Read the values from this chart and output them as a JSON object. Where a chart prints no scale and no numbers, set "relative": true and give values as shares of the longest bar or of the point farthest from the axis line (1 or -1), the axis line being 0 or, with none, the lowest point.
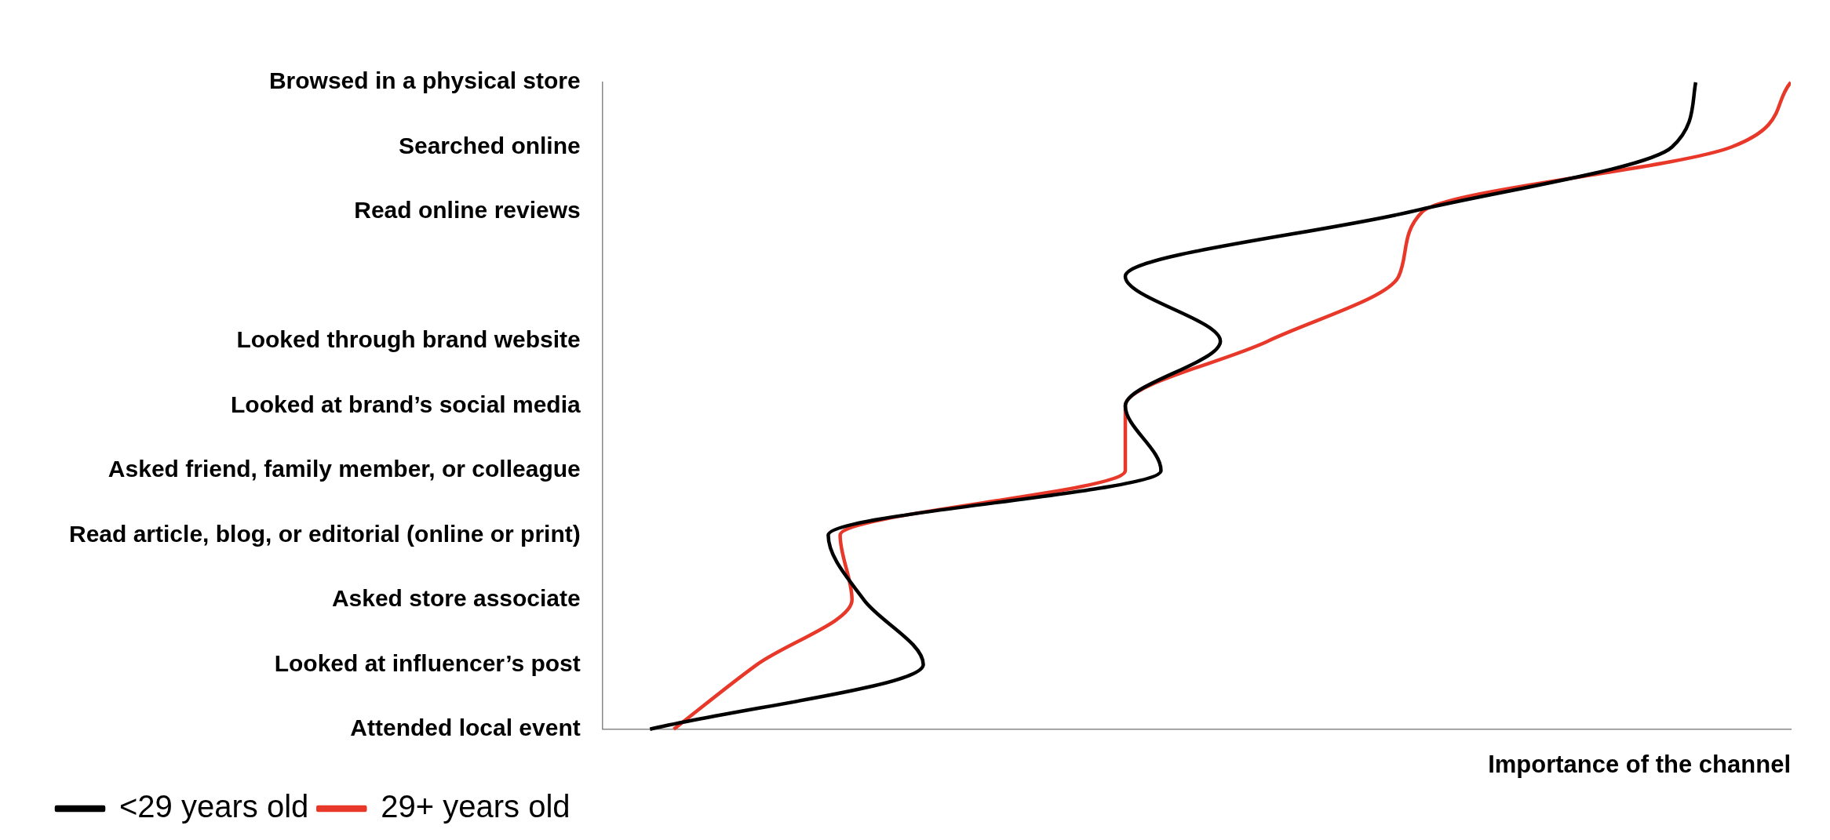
{
  "chart_data": {
    "type": "line",
    "relative": true,
    "orientation": "horizontal",
    "xlabel": "Importance of the channel",
    "categories": [
      "Browsed in a physical store",
      "Searched online",
      "Read online reviews",
      null,
      "Looked through brand website",
      "Looked at brand’s social media",
      "Asked friend, family member, or colleague",
      "Read article, blog, or editorial (online or print)",
      "Asked store associate",
      "Looked at influencer’s post",
      "Attended local event"
    ],
    "series": [
      {
        "name": "<29 years old",
        "color": "#000000",
        "values": [
          0.92,
          0.9,
          0.68,
          0.44,
          0.52,
          0.44,
          0.47,
          0.19,
          0.22,
          0.27,
          0.04
        ]
      },
      {
        "name": "29+ years old",
        "color": "#e8382a",
        "values": [
          1,
          0.95,
          0.69,
          0.67,
          0.56,
          0.44,
          0.44,
          0.2,
          0.21,
          0.13,
          0.06
        ]
      }
    ],
    "legend": "bottom left",
    "grid": false,
    "marker": "none",
    "line_style": "solid"
  }
}
